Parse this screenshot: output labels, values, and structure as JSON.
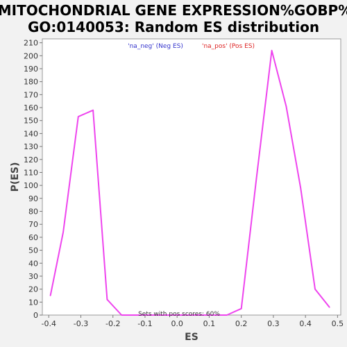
{
  "chart_data": {
    "type": "line",
    "title": "MITOCHONDRIAL GENE EXPRESSION%GOBP%\nGO:0140053: Random ES distribution",
    "xlabel": "ES",
    "ylabel": "P(ES)",
    "xlim": [
      -0.42,
      0.51
    ],
    "ylim": [
      0,
      213
    ],
    "x_ticks": [
      -0.4,
      -0.3,
      -0.2,
      -0.1,
      0.0,
      0.1,
      0.2,
      0.3,
      0.4,
      0.5
    ],
    "x_tick_labels": [
      "-0.4",
      "-0.3",
      "-0.2",
      "-0.1",
      "0.0",
      "0.1",
      "0.2",
      "0.3",
      "0.4",
      "0.5"
    ],
    "y_ticks": [
      0,
      10,
      20,
      30,
      40,
      50,
      60,
      70,
      80,
      90,
      100,
      110,
      120,
      130,
      140,
      150,
      160,
      170,
      180,
      190,
      200,
      210
    ],
    "y_tick_labels": [
      "0",
      "10",
      "20",
      "30",
      "40",
      "50",
      "60",
      "70",
      "80",
      "90",
      "100",
      "110",
      "120",
      "130",
      "140",
      "150",
      "160",
      "170",
      "180",
      "190",
      "200",
      "210"
    ],
    "grid": false,
    "legend": [
      {
        "label": "'na_neg' (Neg ES)",
        "color": "#3333cc"
      },
      {
        "label": "'na_pos' (Pos ES)",
        "color": "#dd2222"
      }
    ],
    "annotation": "Sets with pos scores: 60%",
    "series": [
      {
        "color": "#ee44ee",
        "x": [
          -0.395,
          -0.355,
          -0.308,
          -0.262,
          -0.218,
          -0.173,
          0.155,
          0.2,
          0.247,
          0.295,
          0.34,
          0.385,
          0.43,
          0.475
        ],
        "y": [
          15,
          64,
          153,
          158,
          12,
          0,
          0,
          5,
          105,
          204,
          161,
          98,
          20,
          6
        ]
      }
    ]
  }
}
